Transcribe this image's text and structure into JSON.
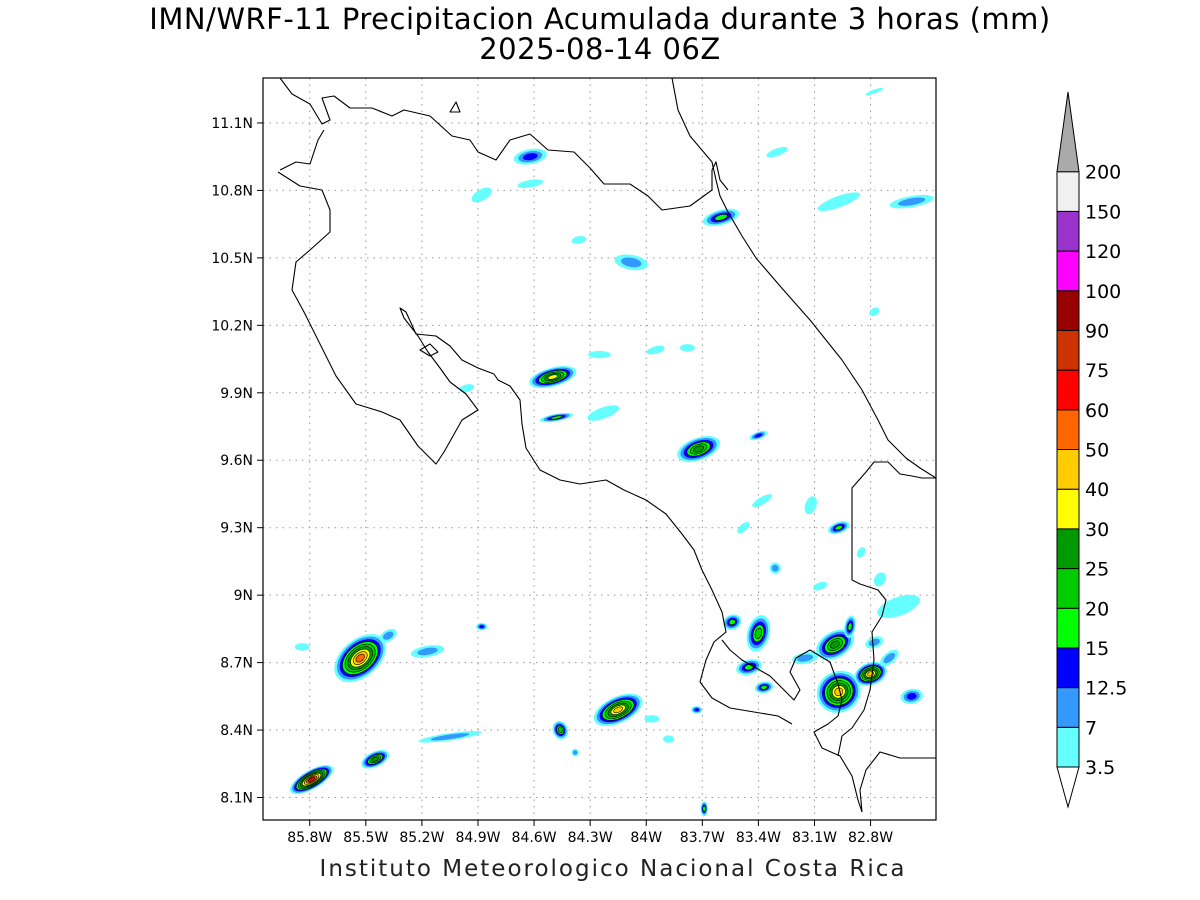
{
  "title": "IMN/WRF-11 Precipitacion Acumulada durante 3 horas (mm)",
  "subtitle": "2025-08-14 06Z",
  "footer": "Instituto Meteorologico Nacional Costa Rica",
  "map": {
    "lon_range": [
      -86.05,
      -82.45
    ],
    "lat_range": [
      8.0,
      11.3
    ],
    "lon_ticks": [
      {
        "value": -85.8,
        "label": "85.8W"
      },
      {
        "value": -85.5,
        "label": "85.5W"
      },
      {
        "value": -85.2,
        "label": "85.2W"
      },
      {
        "value": -84.9,
        "label": "84.9W"
      },
      {
        "value": -84.6,
        "label": "84.6W"
      },
      {
        "value": -84.3,
        "label": "84.3W"
      },
      {
        "value": -84.0,
        "label": "84W"
      },
      {
        "value": -83.7,
        "label": "83.7W"
      },
      {
        "value": -83.4,
        "label": "83.4W"
      },
      {
        "value": -83.1,
        "label": "83.1W"
      },
      {
        "value": -82.8,
        "label": "82.8W"
      }
    ],
    "lat_ticks": [
      {
        "value": 8.1,
        "label": "8.1N"
      },
      {
        "value": 8.4,
        "label": "8.4N"
      },
      {
        "value": 8.7,
        "label": "8.7N"
      },
      {
        "value": 9.0,
        "label": "9N"
      },
      {
        "value": 9.3,
        "label": "9.3N"
      },
      {
        "value": 9.6,
        "label": "9.6N"
      },
      {
        "value": 9.9,
        "label": "9.9N"
      },
      {
        "value": 10.2,
        "label": "10.2N"
      },
      {
        "value": 10.5,
        "label": "10.5N"
      },
      {
        "value": 10.8,
        "label": "10.8N"
      },
      {
        "value": 11.1,
        "label": "11.1N"
      }
    ],
    "gridlines": true
  },
  "colorbar": {
    "units": "mm",
    "levels": [
      {
        "label": "3.5",
        "color": "#66ffff"
      },
      {
        "label": "7",
        "color": "#3399ff"
      },
      {
        "label": "12.5",
        "color": "#0000ff"
      },
      {
        "label": "15",
        "color": "#00ff00"
      },
      {
        "label": "20",
        "color": "#00cc00"
      },
      {
        "label": "25",
        "color": "#009900"
      },
      {
        "label": "30",
        "color": "#ffff00"
      },
      {
        "label": "40",
        "color": "#ffcc00"
      },
      {
        "label": "50",
        "color": "#ff6600"
      },
      {
        "label": "60",
        "color": "#ff0000"
      },
      {
        "label": "75",
        "color": "#cc3300"
      },
      {
        "label": "90",
        "color": "#990000"
      },
      {
        "label": "100",
        "color": "#ff00ff"
      },
      {
        "label": "120",
        "color": "#9933cc"
      },
      {
        "label": "150",
        "color": "#f0f0f0"
      },
      {
        "label": "200",
        "color": "#aaaaaa"
      }
    ]
  },
  "precip_cells": [
    {
      "lon": -85.53,
      "lat": 8.72,
      "rx": 0.16,
      "ry": 0.1,
      "angle": -40,
      "level": 8
    },
    {
      "lon": -85.38,
      "lat": 8.82,
      "rx": 0.05,
      "ry": 0.03,
      "angle": -30,
      "level": 1
    },
    {
      "lon": -85.17,
      "lat": 8.75,
      "rx": 0.09,
      "ry": 0.03,
      "angle": -10,
      "level": 1
    },
    {
      "lon": -85.84,
      "lat": 8.77,
      "rx": 0.04,
      "ry": 0.02,
      "angle": 0,
      "level": 0
    },
    {
      "lon": -84.88,
      "lat": 8.86,
      "rx": 0.03,
      "ry": 0.02,
      "angle": 0,
      "level": 2
    },
    {
      "lon": -85.79,
      "lat": 8.18,
      "rx": 0.13,
      "ry": 0.05,
      "angle": -30,
      "level": 9
    },
    {
      "lon": -85.45,
      "lat": 8.27,
      "rx": 0.08,
      "ry": 0.04,
      "angle": -25,
      "level": 5
    },
    {
      "lon": -85.05,
      "lat": 8.37,
      "rx": 0.17,
      "ry": 0.02,
      "angle": -8,
      "level": 1
    },
    {
      "lon": -84.15,
      "lat": 8.49,
      "rx": 0.14,
      "ry": 0.07,
      "angle": -25,
      "level": 7
    },
    {
      "lon": -84.46,
      "lat": 8.4,
      "rx": 0.04,
      "ry": 0.05,
      "angle": -20,
      "level": 4
    },
    {
      "lon": -84.38,
      "lat": 8.3,
      "rx": 0.02,
      "ry": 0.02,
      "angle": 0,
      "level": 1
    },
    {
      "lon": -83.73,
      "lat": 8.49,
      "rx": 0.03,
      "ry": 0.02,
      "angle": 0,
      "level": 2
    },
    {
      "lon": -83.97,
      "lat": 8.45,
      "rx": 0.04,
      "ry": 0.02,
      "angle": 0,
      "level": 0
    },
    {
      "lon": -83.88,
      "lat": 8.36,
      "rx": 0.03,
      "ry": 0.02,
      "angle": 0,
      "level": 0
    },
    {
      "lon": -83.69,
      "lat": 8.05,
      "rx": 0.02,
      "ry": 0.04,
      "angle": 0,
      "level": 3
    },
    {
      "lon": -84.5,
      "lat": 9.97,
      "rx": 0.13,
      "ry": 0.05,
      "angle": -15,
      "level": 6
    },
    {
      "lon": -84.48,
      "lat": 9.79,
      "rx": 0.09,
      "ry": 0.02,
      "angle": -10,
      "level": 3
    },
    {
      "lon": -84.23,
      "lat": 9.81,
      "rx": 0.09,
      "ry": 0.03,
      "angle": -20,
      "level": 0
    },
    {
      "lon": -84.25,
      "lat": 10.07,
      "rx": 0.06,
      "ry": 0.02,
      "angle": 0,
      "level": 0
    },
    {
      "lon": -83.95,
      "lat": 10.09,
      "rx": 0.05,
      "ry": 0.02,
      "angle": -15,
      "level": 0
    },
    {
      "lon": -83.78,
      "lat": 10.1,
      "rx": 0.04,
      "ry": 0.02,
      "angle": 0,
      "level": 0
    },
    {
      "lon": -84.96,
      "lat": 9.92,
      "rx": 0.04,
      "ry": 0.02,
      "angle": -15,
      "level": 0
    },
    {
      "lon": -84.08,
      "lat": 10.48,
      "rx": 0.09,
      "ry": 0.04,
      "angle": 10,
      "level": 1
    },
    {
      "lon": -84.36,
      "lat": 10.58,
      "rx": 0.04,
      "ry": 0.02,
      "angle": -10,
      "level": 0
    },
    {
      "lon": -83.6,
      "lat": 10.68,
      "rx": 0.1,
      "ry": 0.04,
      "angle": -15,
      "level": 3
    },
    {
      "lon": -84.62,
      "lat": 10.95,
      "rx": 0.09,
      "ry": 0.04,
      "angle": -10,
      "level": 2
    },
    {
      "lon": -84.62,
      "lat": 10.83,
      "rx": 0.07,
      "ry": 0.02,
      "angle": -10,
      "level": 0
    },
    {
      "lon": -84.88,
      "lat": 10.78,
      "rx": 0.06,
      "ry": 0.03,
      "angle": -30,
      "level": 0
    },
    {
      "lon": -83.3,
      "lat": 10.97,
      "rx": 0.06,
      "ry": 0.02,
      "angle": -20,
      "level": 0
    },
    {
      "lon": -82.97,
      "lat": 10.75,
      "rx": 0.12,
      "ry": 0.03,
      "angle": -20,
      "level": 0
    },
    {
      "lon": -82.58,
      "lat": 10.75,
      "rx": 0.12,
      "ry": 0.03,
      "angle": -10,
      "level": 1
    },
    {
      "lon": -82.78,
      "lat": 10.26,
      "rx": 0.03,
      "ry": 0.02,
      "angle": -30,
      "level": 0
    },
    {
      "lon": -82.78,
      "lat": 11.24,
      "rx": 0.05,
      "ry": 0.01,
      "angle": -20,
      "level": 0
    },
    {
      "lon": -83.72,
      "lat": 9.65,
      "rx": 0.12,
      "ry": 0.06,
      "angle": -20,
      "level": 5
    },
    {
      "lon": -83.4,
      "lat": 9.71,
      "rx": 0.05,
      "ry": 0.02,
      "angle": -20,
      "level": 2
    },
    {
      "lon": -83.38,
      "lat": 9.42,
      "rx": 0.06,
      "ry": 0.02,
      "angle": -30,
      "level": 0
    },
    {
      "lon": -83.48,
      "lat": 9.3,
      "rx": 0.04,
      "ry": 0.02,
      "angle": -40,
      "level": 0
    },
    {
      "lon": -83.12,
      "lat": 9.4,
      "rx": 0.03,
      "ry": 0.05,
      "angle": 20,
      "level": 0
    },
    {
      "lon": -82.97,
      "lat": 9.3,
      "rx": 0.06,
      "ry": 0.03,
      "angle": -20,
      "level": 3
    },
    {
      "lon": -83.31,
      "lat": 9.12,
      "rx": 0.03,
      "ry": 0.03,
      "angle": -30,
      "level": 1
    },
    {
      "lon": -83.4,
      "lat": 8.83,
      "rx": 0.06,
      "ry": 0.1,
      "angle": 15,
      "level": 4
    },
    {
      "lon": -83.54,
      "lat": 8.88,
      "rx": 0.05,
      "ry": 0.04,
      "angle": -20,
      "level": 3
    },
    {
      "lon": -83.45,
      "lat": 8.68,
      "rx": 0.07,
      "ry": 0.04,
      "angle": -15,
      "level": 3
    },
    {
      "lon": -83.37,
      "lat": 8.59,
      "rx": 0.05,
      "ry": 0.03,
      "angle": -10,
      "level": 3
    },
    {
      "lon": -82.99,
      "lat": 8.78,
      "rx": 0.11,
      "ry": 0.07,
      "angle": -30,
      "level": 5
    },
    {
      "lon": -82.97,
      "lat": 8.57,
      "rx": 0.12,
      "ry": 0.11,
      "angle": -30,
      "level": 7
    },
    {
      "lon": -82.8,
      "lat": 8.65,
      "rx": 0.09,
      "ry": 0.06,
      "angle": -20,
      "level": 7
    },
    {
      "lon": -82.91,
      "lat": 8.86,
      "rx": 0.03,
      "ry": 0.06,
      "angle": 10,
      "level": 3
    },
    {
      "lon": -82.65,
      "lat": 8.95,
      "rx": 0.12,
      "ry": 0.05,
      "angle": -20,
      "level": 0
    },
    {
      "lon": -82.58,
      "lat": 8.55,
      "rx": 0.06,
      "ry": 0.04,
      "angle": -10,
      "level": 2
    },
    {
      "lon": -82.78,
      "lat": 8.79,
      "rx": 0.05,
      "ry": 0.03,
      "angle": -20,
      "level": 1
    },
    {
      "lon": -82.7,
      "lat": 8.72,
      "rx": 0.06,
      "ry": 0.03,
      "angle": -40,
      "level": 1
    },
    {
      "lon": -83.15,
      "lat": 8.72,
      "rx": 0.07,
      "ry": 0.03,
      "angle": -10,
      "level": 1
    },
    {
      "lon": -82.75,
      "lat": 9.07,
      "rx": 0.03,
      "ry": 0.04,
      "angle": 30,
      "level": 0
    },
    {
      "lon": -82.85,
      "lat": 9.19,
      "rx": 0.02,
      "ry": 0.03,
      "angle": 30,
      "level": 0
    },
    {
      "lon": -83.07,
      "lat": 9.04,
      "rx": 0.04,
      "ry": 0.02,
      "angle": -20,
      "level": 0
    }
  ]
}
